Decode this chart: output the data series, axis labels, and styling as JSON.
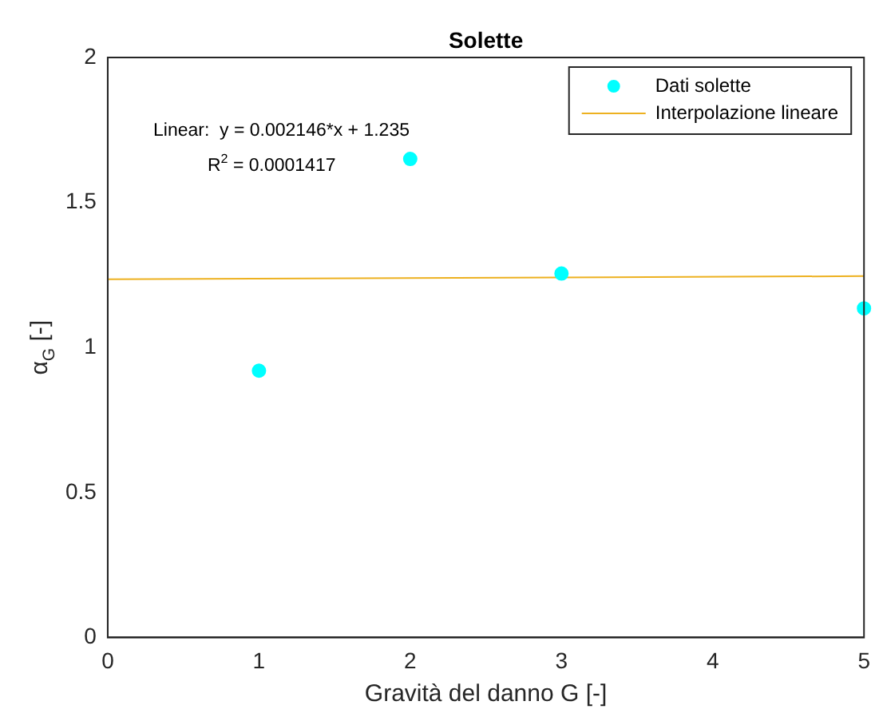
{
  "chart_data": {
    "type": "scatter",
    "title": "Solette",
    "xlabel": "Gravità del danno G [-]",
    "ylabel": "α$_{G}$ [-]",
    "xlim": [
      0,
      5
    ],
    "xticks": [
      0,
      1,
      2,
      3,
      4,
      5
    ],
    "ylim": [
      0,
      2
    ],
    "yticks": [
      0,
      0.5,
      1,
      1.5,
      2
    ],
    "series": [
      {
        "name": "Dati solette",
        "type": "scatter",
        "marker": "circle",
        "color": "#00ffff",
        "x": [
          1,
          2,
          3,
          5
        ],
        "values": [
          0.92,
          1.65,
          1.255,
          1.135
        ]
      },
      {
        "name": "Interpolazione lineare",
        "type": "line",
        "marker": "none",
        "color": "#edb120",
        "x": [
          0,
          5
        ],
        "values": [
          1.235,
          1.246
        ]
      }
    ],
    "grid": false,
    "legend": "top right",
    "annotations": [
      "Linear:  y = 0.002146*x + 1.235",
      "R$^{2}$ = 0.0001417"
    ]
  }
}
